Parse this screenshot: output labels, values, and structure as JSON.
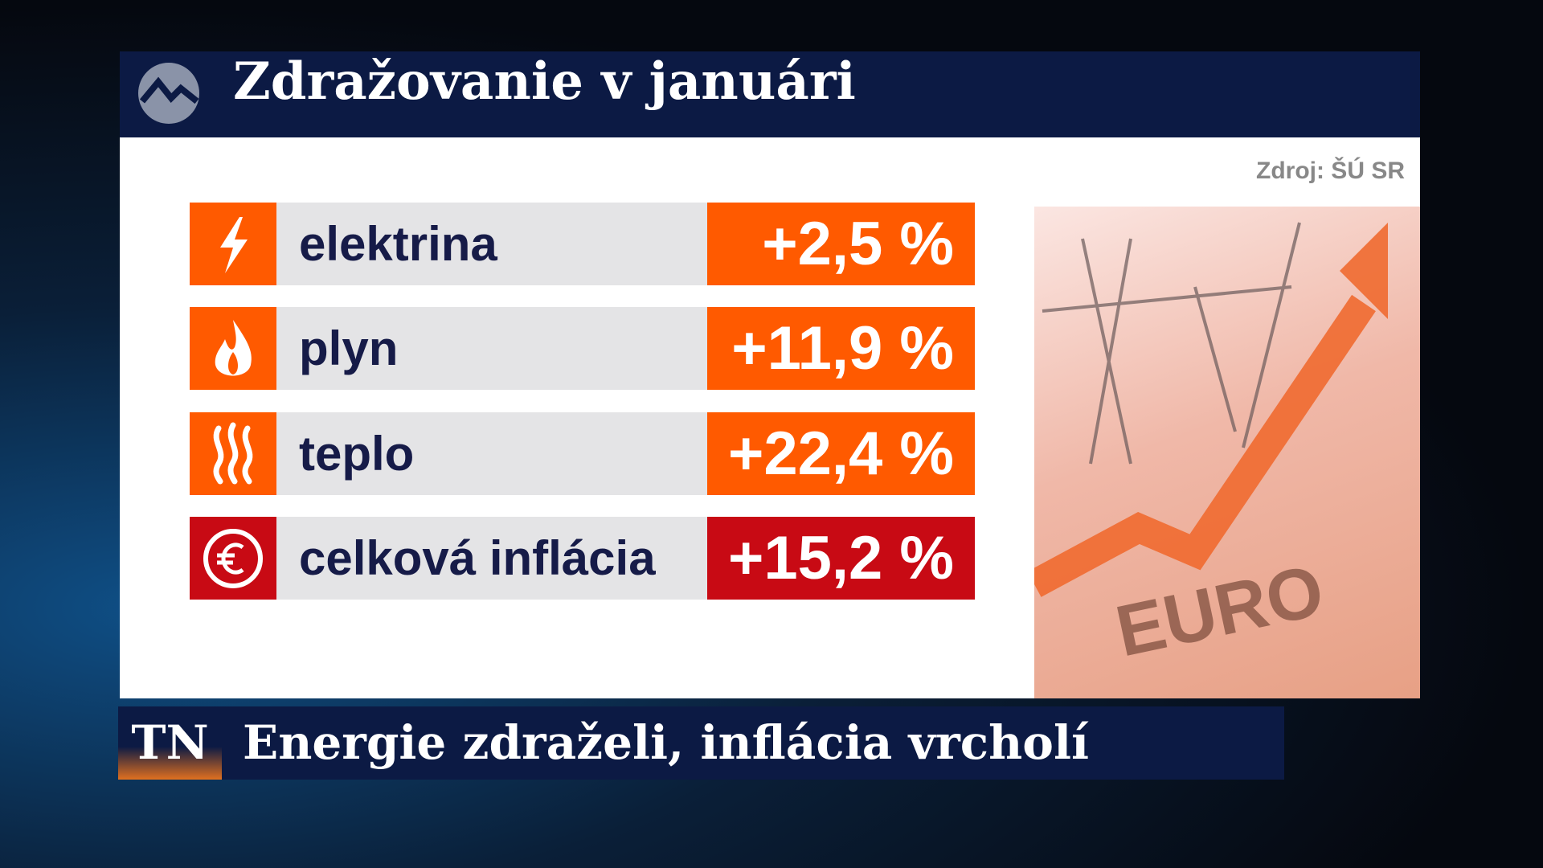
{
  "header": {
    "title": "Zdražovanie v januári"
  },
  "source": "Zdroj: ŠÚ SR",
  "rows": [
    {
      "label": "elektrina",
      "value": "+2,5 %"
    },
    {
      "label": "plyn",
      "value": "+11,9 %"
    },
    {
      "label": "teplo",
      "value": "+22,4 %"
    },
    {
      "label": "celková inflácia",
      "value": "+15,2 %"
    }
  ],
  "ticker": {
    "logo": "TN",
    "headline": "Energie zdraželi, inflácia vrcholí"
  }
}
